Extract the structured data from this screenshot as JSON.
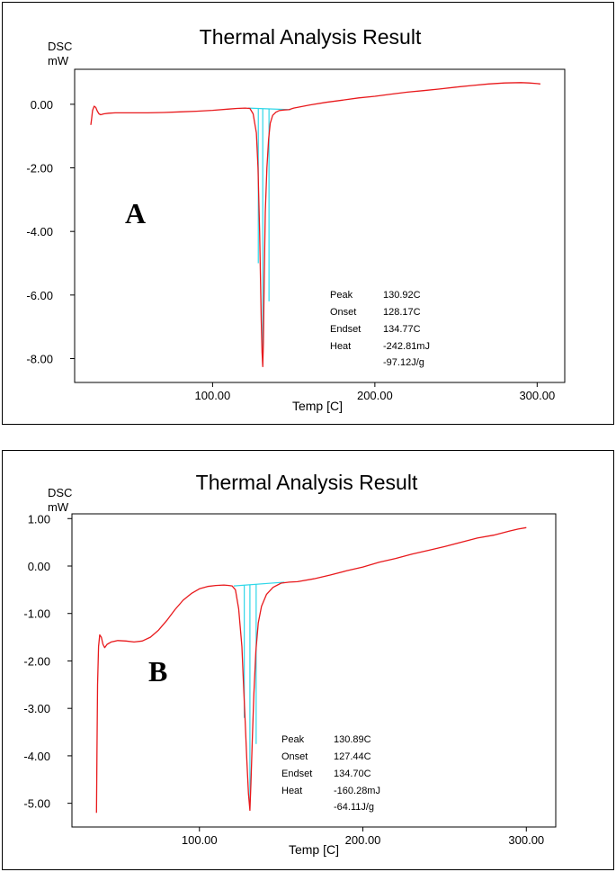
{
  "chart_data": [
    {
      "type": "line",
      "panel_letter": "A",
      "title": "Thermal Analysis Result",
      "ylabel_top": "DSC",
      "ylabel_unit": "mW",
      "xlabel": "Temp  [C]",
      "xlim": [
        15,
        317
      ],
      "ylim": [
        -8.75,
        1.1
      ],
      "x_ticks": [
        100,
        200,
        300
      ],
      "x_tick_labels": [
        "100.00",
        "200.00",
        "300.00"
      ],
      "y_ticks": [
        0,
        -2,
        -4,
        -6,
        -8
      ],
      "y_tick_labels": [
        "0.00",
        "-2.00",
        "-4.00",
        "-6.00",
        "-8.00"
      ],
      "grid": false,
      "annotations": [
        {
          "label": "Peak",
          "value": "130.92C"
        },
        {
          "label": "Onset",
          "value": "128.17C"
        },
        {
          "label": "Endset",
          "value": "134.77C"
        },
        {
          "label": "Heat",
          "value": "-242.81mJ"
        },
        {
          "label": "",
          "value": "-97.12J/g"
        }
      ],
      "series": [
        {
          "color": "#e8191c",
          "x": [
            25,
            25.5,
            26,
            27,
            28,
            29,
            30,
            31,
            33,
            36,
            40,
            50,
            60,
            70,
            80,
            90,
            100,
            110,
            115,
            120,
            123,
            125,
            127,
            128,
            129,
            130,
            130.5,
            130.9,
            131.3,
            131.8,
            132.5,
            133.5,
            134.5,
            135.5,
            137,
            139,
            141,
            144,
            147,
            150,
            160,
            170,
            180,
            190,
            200,
            210,
            220,
            230,
            240,
            250,
            260,
            270,
            280,
            290,
            295,
            300,
            302
          ],
          "y": [
            -0.65,
            -0.45,
            -0.2,
            -0.06,
            -0.1,
            -0.22,
            -0.3,
            -0.33,
            -0.3,
            -0.28,
            -0.27,
            -0.27,
            -0.27,
            -0.26,
            -0.24,
            -0.22,
            -0.19,
            -0.15,
            -0.13,
            -0.12,
            -0.13,
            -0.3,
            -0.9,
            -2.0,
            -4.0,
            -6.8,
            -7.8,
            -8.25,
            -7.5,
            -5.5,
            -3.4,
            -2.0,
            -1.1,
            -0.6,
            -0.35,
            -0.25,
            -0.2,
            -0.18,
            -0.17,
            -0.12,
            -0.02,
            0.06,
            0.13,
            0.2,
            0.25,
            0.32,
            0.38,
            0.43,
            0.48,
            0.54,
            0.59,
            0.64,
            0.67,
            0.68,
            0.67,
            0.65,
            0.64
          ]
        }
      ],
      "baseline": {
        "color": "#2fd7e8",
        "x": [
          122,
          148
        ],
        "y": [
          -0.12,
          -0.17
        ]
      },
      "markers": {
        "color": "#2fd7e8",
        "x": [
          128.17,
          130.92,
          134.77
        ],
        "y_bottom": [
          -5.0,
          -8.2,
          -6.2
        ]
      }
    },
    {
      "type": "line",
      "panel_letter": "B",
      "title": "Thermal Analysis Result",
      "ylabel_top": "DSC",
      "ylabel_unit": "mW",
      "xlabel": "Temp  [C]",
      "xlim": [
        22,
        318
      ],
      "ylim": [
        -5.5,
        1.1
      ],
      "x_ticks": [
        100,
        200,
        300
      ],
      "x_tick_labels": [
        "100.00",
        "200.00",
        "300.00"
      ],
      "y_ticks": [
        1,
        0,
        -1,
        -2,
        -3,
        -4,
        -5
      ],
      "y_tick_labels": [
        "1.00",
        "0.00",
        "-1.00",
        "-2.00",
        "-3.00",
        "-4.00",
        "-5.00"
      ],
      "grid": false,
      "annotations": [
        {
          "label": "Peak",
          "value": "130.89C"
        },
        {
          "label": "Onset",
          "value": "127.44C"
        },
        {
          "label": "Endset",
          "value": "134.70C"
        },
        {
          "label": "Heat",
          "value": "-160.28mJ"
        },
        {
          "label": "",
          "value": "-64.11J/g"
        }
      ],
      "series": [
        {
          "color": "#e8191c",
          "x": [
            37,
            37.3,
            37.7,
            38.3,
            39,
            40,
            41,
            42,
            43.5,
            46,
            50,
            55,
            60,
            65,
            70,
            75,
            80,
            85,
            90,
            95,
            100,
            105,
            110,
            115,
            118,
            120,
            122,
            124,
            126,
            127,
            128,
            129,
            130,
            130.9,
            131.5,
            132.3,
            133.3,
            134.5,
            136,
            138,
            141,
            145,
            150,
            155,
            160,
            170,
            180,
            190,
            200,
            210,
            220,
            230,
            240,
            250,
            260,
            270,
            280,
            290,
            295,
            300
          ],
          "y": [
            -5.2,
            -4.0,
            -2.5,
            -1.7,
            -1.45,
            -1.5,
            -1.65,
            -1.72,
            -1.65,
            -1.6,
            -1.57,
            -1.58,
            -1.6,
            -1.58,
            -1.5,
            -1.35,
            -1.15,
            -0.92,
            -0.72,
            -0.58,
            -0.48,
            -0.43,
            -0.41,
            -0.4,
            -0.41,
            -0.42,
            -0.5,
            -0.9,
            -1.7,
            -2.5,
            -3.3,
            -4.1,
            -4.8,
            -5.15,
            -4.6,
            -3.7,
            -2.7,
            -1.8,
            -1.2,
            -0.85,
            -0.6,
            -0.45,
            -0.36,
            -0.34,
            -0.33,
            -0.27,
            -0.19,
            -0.1,
            -0.02,
            0.08,
            0.16,
            0.25,
            0.33,
            0.41,
            0.5,
            0.59,
            0.65,
            0.74,
            0.78,
            0.81
          ]
        }
      ],
      "baseline": {
        "color": "#2fd7e8",
        "x": [
          121,
          152
        ],
        "y": [
          -0.42,
          -0.34
        ]
      },
      "markers": {
        "color": "#2fd7e8",
        "x": [
          127.44,
          130.89,
          134.7
        ],
        "y_bottom": [
          -3.2,
          -5.05,
          -3.75
        ]
      }
    }
  ]
}
